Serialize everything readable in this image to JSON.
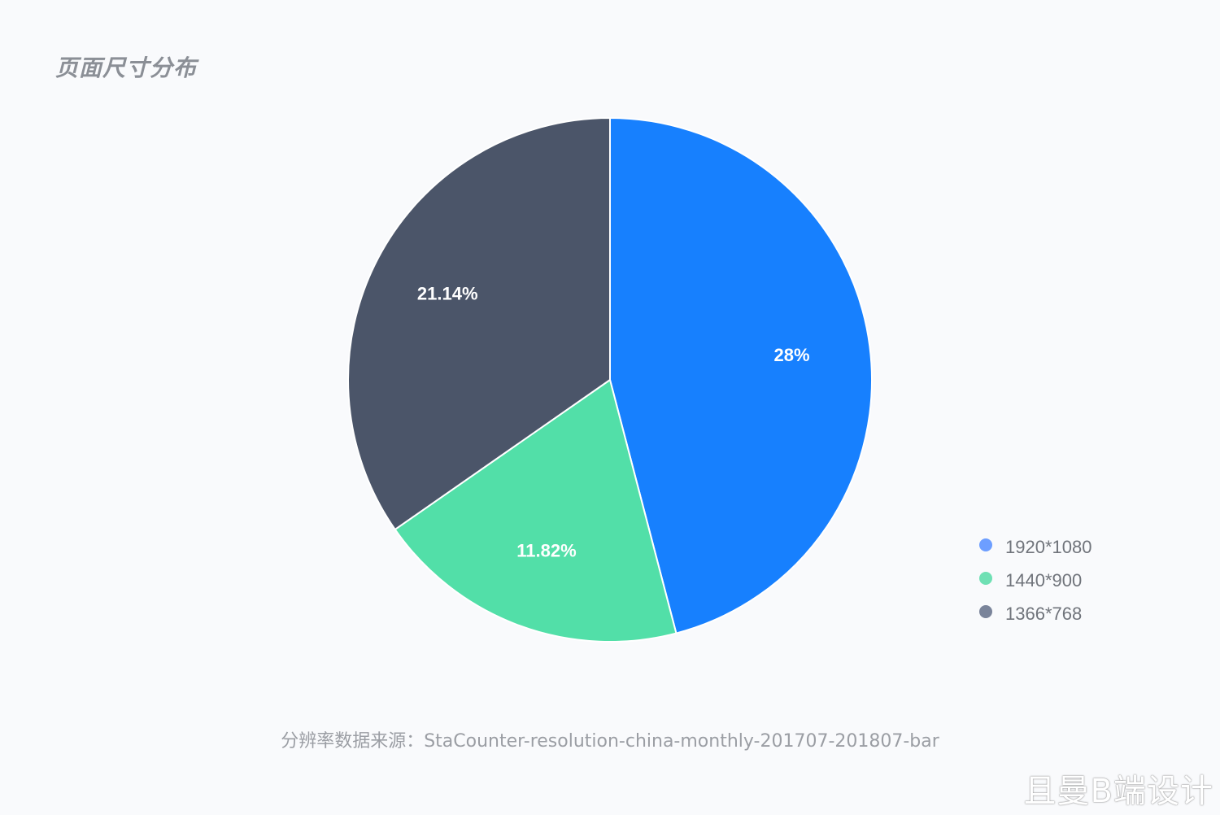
{
  "title": "页面尺寸分布",
  "source_note": "分辨率数据来源：StaCounter-resolution-china-monthly-201707-201807-bar",
  "watermark": "且曼B端设计",
  "chart_data": {
    "type": "pie",
    "title": "页面尺寸分布",
    "legend_position": "bottom-right",
    "categories": [
      "1920*1080",
      "1440*900",
      "1366*768"
    ],
    "values": [
      28,
      11.82,
      21.14
    ],
    "labels": [
      "28%",
      "11.82%",
      "21.14%"
    ],
    "slice_colors": [
      "#1780fe",
      "#52dfa8",
      "#4b5569"
    ],
    "legend_colors": [
      "#6d9eff",
      "#6fe0b4",
      "#7a849a"
    ]
  }
}
